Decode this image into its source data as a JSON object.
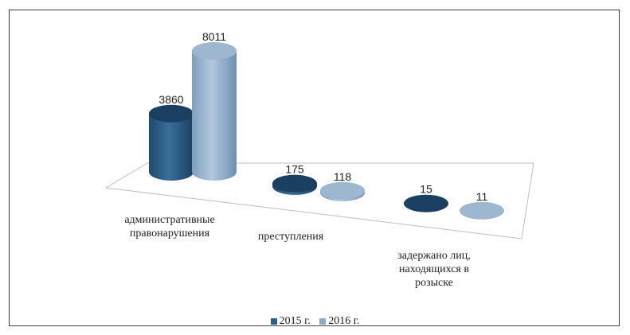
{
  "chart_data": {
    "type": "bar",
    "bar_style": "3d-cylinder",
    "categories": [
      "административные\nправонарушения",
      "преступления",
      "задержано лиц,\nнаходящихся в\nрозыске"
    ],
    "series": [
      {
        "name": "2015 г.",
        "values": [
          3860,
          175,
          15
        ],
        "color": "#2d5f88"
      },
      {
        "name": "2016 г.",
        "values": [
          8011,
          118,
          11
        ],
        "color": "#8aaac8"
      }
    ],
    "data_labels": [
      [
        "3860",
        "175",
        "15"
      ],
      [
        "8011",
        "118",
        "11"
      ]
    ],
    "legend_position": "bottom",
    "grid": false
  }
}
